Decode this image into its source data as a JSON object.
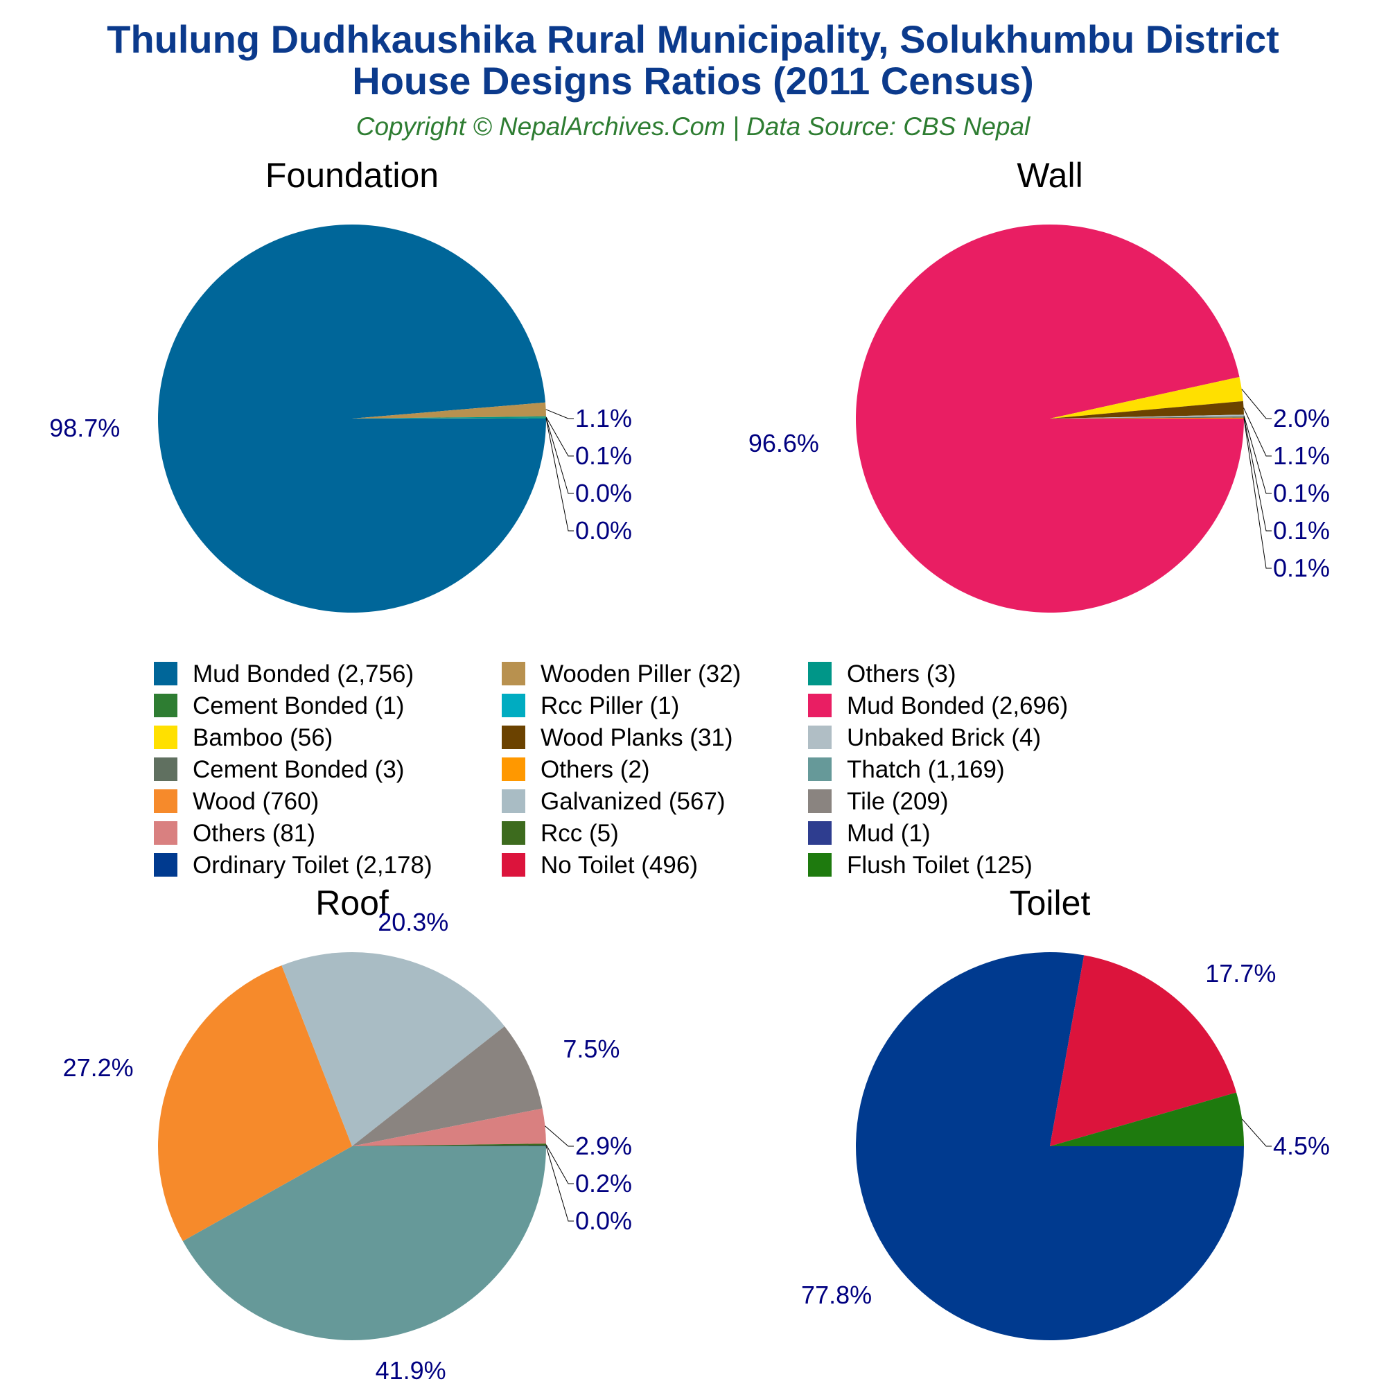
{
  "title_line1": "Thulung Dudhkaushika Rural Municipality, Solukhumbu District",
  "title_line2": "House Designs Ratios (2011 Census)",
  "subtitle": "Copyright © NepalArchives.Com | Data Source: CBS Nepal",
  "chart_data": [
    {
      "type": "pie",
      "title": "Foundation",
      "slices": [
        {
          "label": "Mud Bonded (2,756)",
          "value": 2756,
          "pct_label": "98.7%",
          "color": "#006699"
        },
        {
          "label": "Wooden Piller (32)",
          "value": 32,
          "pct_label": "1.1%",
          "color": "#b8914f"
        },
        {
          "label": "Others (3)",
          "value": 3,
          "pct_label": "0.1%",
          "color": "#009688"
        },
        {
          "label": "Cement Bonded (1)",
          "value": 1,
          "pct_label": "0.0%",
          "color": "#2e7d32"
        },
        {
          "label": "Rcc Piller (1)",
          "value": 1,
          "pct_label": "0.0%",
          "color": "#00acc1"
        }
      ]
    },
    {
      "type": "pie",
      "title": "Wall",
      "slices": [
        {
          "label": "Mud Bonded (2,696)",
          "value": 2696,
          "pct_label": "96.6%",
          "color": "#e91e63"
        },
        {
          "label": "Bamboo (56)",
          "value": 56,
          "pct_label": "2.0%",
          "color": "#ffe000"
        },
        {
          "label": "Wood Planks (31)",
          "value": 31,
          "pct_label": "1.1%",
          "color": "#6b4200"
        },
        {
          "label": "Unbaked Brick (4)",
          "value": 4,
          "pct_label": "0.1%",
          "color": "#b0bec5"
        },
        {
          "label": "Cement Bonded (3)",
          "value": 3,
          "pct_label": "0.1%",
          "color": "#607060"
        },
        {
          "label": "Others (2)",
          "value": 2,
          "pct_label": "0.1%",
          "color": "#ff9800"
        }
      ]
    },
    {
      "type": "pie",
      "title": "Roof",
      "slices": [
        {
          "label": "Thatch (1,169)",
          "value": 1169,
          "pct_label": "41.9%",
          "color": "#669999"
        },
        {
          "label": "Wood (760)",
          "value": 760,
          "pct_label": "27.2%",
          "color": "#f68a2b"
        },
        {
          "label": "Galvanized (567)",
          "value": 567,
          "pct_label": "20.3%",
          "color": "#a9bcc4"
        },
        {
          "label": "Tile (209)",
          "value": 209,
          "pct_label": "7.5%",
          "color": "#8a8480"
        },
        {
          "label": "Others (81)",
          "value": 81,
          "pct_label": "2.9%",
          "color": "#d98080"
        },
        {
          "label": "Rcc (5)",
          "value": 5,
          "pct_label": "0.2%",
          "color": "#3d6b1e"
        },
        {
          "label": "Mud (1)",
          "value": 1,
          "pct_label": "0.0%",
          "color": "#2e3d8f"
        }
      ]
    },
    {
      "type": "pie",
      "title": "Toilet",
      "slices": [
        {
          "label": "Ordinary Toilet (2,178)",
          "value": 2178,
          "pct_label": "77.8%",
          "color": "#003a8f"
        },
        {
          "label": "No Toilet (496)",
          "value": 496,
          "pct_label": "17.7%",
          "color": "#dc143c"
        },
        {
          "label": "Flush Toilet (125)",
          "value": 125,
          "pct_label": "4.5%",
          "color": "#1e7a0e"
        }
      ]
    }
  ],
  "legend": [
    {
      "label": "Mud Bonded (2,756)",
      "color": "#006699"
    },
    {
      "label": "Wooden Piller (32)",
      "color": "#b8914f"
    },
    {
      "label": "Others (3)",
      "color": "#009688"
    },
    {
      "label": "Cement Bonded (1)",
      "color": "#2e7d32"
    },
    {
      "label": "Rcc Piller (1)",
      "color": "#00acc1"
    },
    {
      "label": "Mud Bonded (2,696)",
      "color": "#e91e63"
    },
    {
      "label": "Bamboo (56)",
      "color": "#ffe000"
    },
    {
      "label": "Wood Planks (31)",
      "color": "#6b4200"
    },
    {
      "label": "Unbaked Brick (4)",
      "color": "#b0bec5"
    },
    {
      "label": "Cement Bonded (3)",
      "color": "#607060"
    },
    {
      "label": "Others (2)",
      "color": "#ff9800"
    },
    {
      "label": "Thatch (1,169)",
      "color": "#669999"
    },
    {
      "label": "Wood (760)",
      "color": "#f68a2b"
    },
    {
      "label": "Galvanized (567)",
      "color": "#a9bcc4"
    },
    {
      "label": "Tile (209)",
      "color": "#8a8480"
    },
    {
      "label": "Others (81)",
      "color": "#d98080"
    },
    {
      "label": "Rcc (5)",
      "color": "#3d6b1e"
    },
    {
      "label": "Mud (1)",
      "color": "#2e3d8f"
    },
    {
      "label": "Ordinary Toilet (2,178)",
      "color": "#003a8f"
    },
    {
      "label": "No Toilet (496)",
      "color": "#dc143c"
    },
    {
      "label": "Flush Toilet (125)",
      "color": "#1e7a0e"
    }
  ]
}
